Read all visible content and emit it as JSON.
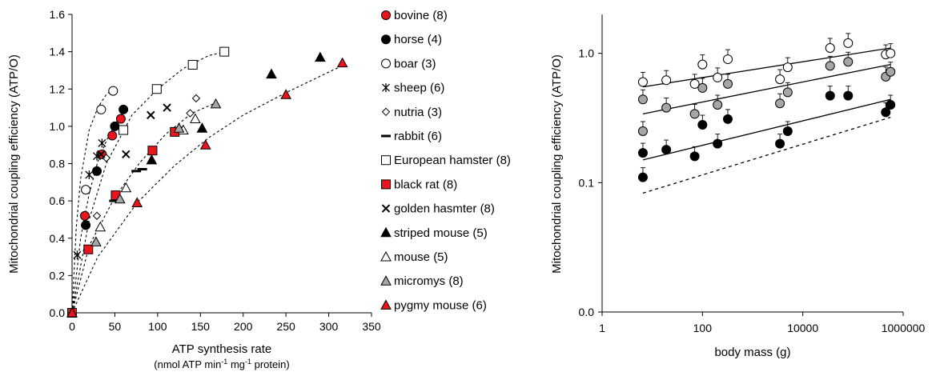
{
  "chart_data": [
    {
      "type": "scatter",
      "xlabel": "ATP synthesis rate",
      "xlabel_line2_parts": [
        "(nmol ATP min",
        "-1",
        " mg",
        "-1",
        " protein)"
      ],
      "ylabel": "Mitochondrial coupling efficiency (ATP/O)",
      "xlim": [
        0,
        350
      ],
      "ylim": [
        0,
        1.6
      ],
      "x_ticks": [
        "0",
        "50",
        "100",
        "150",
        "200",
        "250",
        "300",
        "350"
      ],
      "y_ticks": [
        "0.0",
        "0.2",
        "0.4",
        "0.6",
        "0.8",
        "1.0",
        "1.2",
        "1.4",
        "1.6"
      ],
      "legend_position": "right",
      "series": [
        {
          "name": "bovine (8)",
          "marker": "circle",
          "color": "#e8161c",
          "points": [
            [
              0,
              0
            ],
            [
              15,
              0.52
            ],
            [
              35,
              0.85
            ],
            [
              47,
              0.95
            ],
            [
              57,
              1.04
            ]
          ]
        },
        {
          "name": "horse (4)",
          "marker": "circle",
          "color": "#000000",
          "points": [
            [
              0,
              0
            ],
            [
              16,
              0.47
            ],
            [
              29,
              0.76
            ],
            [
              50,
              1.0
            ],
            [
              60,
              1.09
            ]
          ]
        },
        {
          "name": "boar (3)",
          "marker": "circle",
          "color": "#ffffff",
          "points": [
            [
              0,
              0
            ],
            [
              16,
              0.66
            ],
            [
              34,
              1.09
            ],
            [
              48,
              1.19
            ]
          ]
        },
        {
          "name": "sheep (6)",
          "marker": "asterisk",
          "color": "#000000",
          "points": [
            [
              6,
              0.31
            ],
            [
              20,
              0.74
            ],
            [
              29,
              0.84
            ],
            [
              35,
              0.91
            ]
          ]
        },
        {
          "name": "nutria (3)",
          "marker": "diamond",
          "color": "#ffffff",
          "points": [
            [
              29,
              0.52
            ],
            [
              40,
              0.83
            ],
            [
              129,
              0.98
            ],
            [
              138,
              1.07
            ],
            [
              145,
              1.15
            ]
          ]
        },
        {
          "name": "rabbit (6)",
          "marker": "dash",
          "color": "#000000",
          "points": [
            [
              49,
              0.6
            ],
            [
              75,
              0.76
            ],
            [
              82,
              0.77
            ]
          ]
        },
        {
          "name": "European hamster (8)",
          "marker": "square",
          "color": "#ffffff",
          "points": [
            [
              0,
              0
            ],
            [
              60,
              0.98
            ],
            [
              99,
              1.2
            ],
            [
              141,
              1.33
            ],
            [
              178,
              1.4
            ]
          ]
        },
        {
          "name": "black rat (8)",
          "marker": "square",
          "color": "#e8161c",
          "points": [
            [
              0,
              0
            ],
            [
              19,
              0.34
            ],
            [
              51,
              0.63
            ],
            [
              94,
              0.87
            ],
            [
              120,
              0.97
            ]
          ]
        },
        {
          "name": "golden hasmter (8)",
          "marker": "x",
          "color": "#000000",
          "points": [
            [
              34,
              0.85
            ],
            [
              63,
              0.85
            ],
            [
              92,
              1.06
            ],
            [
              111,
              1.1
            ]
          ]
        },
        {
          "name": "striped mouse (5)",
          "marker": "triangle",
          "color": "#000000",
          "points": [
            [
              0,
              0
            ],
            [
              93,
              0.82
            ],
            [
              152,
              0.99
            ],
            [
              233,
              1.28
            ],
            [
              290,
              1.37
            ]
          ]
        },
        {
          "name": "mouse (5)",
          "marker": "triangle",
          "color": "#ffffff",
          "points": [
            [
              0,
              0
            ],
            [
              33,
              0.46
            ],
            [
              63,
              0.67
            ],
            [
              130,
              0.98
            ],
            [
              144,
              1.04
            ]
          ]
        },
        {
          "name": "micromys (8)",
          "marker": "triangle",
          "color": "#a6a6a6",
          "points": [
            [
              0,
              0
            ],
            [
              28,
              0.38
            ],
            [
              56,
              0.61
            ],
            [
              125,
              0.99
            ],
            [
              168,
              1.12
            ]
          ]
        },
        {
          "name": "pygmy mouse (6)",
          "marker": "triangle",
          "color": "#e8161c",
          "points": [
            [
              0,
              0
            ],
            [
              76,
              0.59
            ],
            [
              156,
              0.9
            ],
            [
              250,
              1.17
            ],
            [
              316,
              1.34
            ]
          ]
        }
      ],
      "fit_curves": [
        {
          "style": "dotted",
          "points": [
            [
              0,
              0
            ],
            [
              5,
              0.46
            ],
            [
              10,
              0.72
            ],
            [
              20,
              0.98
            ],
            [
              30,
              1.1
            ],
            [
              40,
              1.17
            ],
            [
              50,
              1.21
            ]
          ]
        },
        {
          "style": "dotted",
          "points": [
            [
              0,
              0
            ],
            [
              10,
              0.4
            ],
            [
              20,
              0.64
            ],
            [
              30,
              0.81
            ],
            [
              40,
              0.92
            ],
            [
              50,
              1.01
            ],
            [
              60,
              1.08
            ]
          ]
        },
        {
          "style": "dotted",
          "points": [
            [
              0,
              0
            ],
            [
              20,
              0.5
            ],
            [
              40,
              0.8
            ],
            [
              70,
              1.06
            ],
            [
              100,
              1.2
            ],
            [
              130,
              1.31
            ],
            [
              160,
              1.38
            ],
            [
              180,
              1.4
            ]
          ]
        },
        {
          "style": "dotted",
          "points": [
            [
              0,
              0
            ],
            [
              20,
              0.36
            ],
            [
              50,
              0.62
            ],
            [
              80,
              0.81
            ],
            [
              110,
              0.96
            ],
            [
              140,
              1.07
            ],
            [
              165,
              1.12
            ]
          ]
        },
        {
          "style": "dotted",
          "points": [
            [
              0,
              0
            ],
            [
              30,
              0.3
            ],
            [
              76,
              0.59
            ],
            [
              120,
              0.79
            ],
            [
              160,
              0.94
            ],
            [
              200,
              1.06
            ],
            [
              250,
              1.18
            ],
            [
              318,
              1.33
            ]
          ]
        }
      ]
    },
    {
      "type": "scatter",
      "xlabel": "body mass (g)",
      "ylabel": "Mitochondrial coupling efficiency (ATP/O)",
      "x_scale": "log",
      "y_scale": "log",
      "xlim": [
        1,
        1000000
      ],
      "ylim": [
        0.01,
        2
      ],
      "x_ticks": [
        {
          "value": 1,
          "label": "1"
        },
        {
          "value": 100,
          "label": "100"
        },
        {
          "value": 10000,
          "label": "10000"
        },
        {
          "value": 1000000,
          "label": "1000000"
        }
      ],
      "y_ticks": [
        {
          "value": 0.01,
          "label": "0.0"
        },
        {
          "value": 0.1,
          "label": "0.1"
        },
        {
          "value": 1,
          "label": "1.0"
        }
      ],
      "series": [
        {
          "name": "",
          "marker": "circle",
          "color": "#ffffff",
          "points": [
            [
              6.5,
              0.6
            ],
            [
              19,
              0.62
            ],
            [
              70,
              0.58
            ],
            [
              100,
              0.82
            ],
            [
              200,
              0.65
            ],
            [
              320,
              0.9
            ],
            [
              3500,
              0.63
            ],
            [
              5000,
              0.78
            ],
            [
              35000,
              1.1
            ],
            [
              80000,
              1.2
            ],
            [
              450000,
              0.98
            ],
            [
              560000,
              1.0
            ]
          ]
        },
        {
          "name": "",
          "marker": "circle",
          "color": "#a6a6a6",
          "points": [
            [
              6.5,
              0.25
            ],
            [
              6.5,
              0.44
            ],
            [
              19,
              0.38
            ],
            [
              70,
              0.34
            ],
            [
              100,
              0.54
            ],
            [
              200,
              0.4
            ],
            [
              320,
              0.58
            ],
            [
              3500,
              0.41
            ],
            [
              5000,
              0.5
            ],
            [
              35000,
              0.8
            ],
            [
              80000,
              0.86
            ],
            [
              450000,
              0.66
            ],
            [
              560000,
              0.72
            ]
          ]
        },
        {
          "name": "",
          "marker": "circle",
          "color": "#000000",
          "points": [
            [
              6.5,
              0.11
            ],
            [
              6.5,
              0.17
            ],
            [
              19,
              0.18
            ],
            [
              70,
              0.16
            ],
            [
              100,
              0.28
            ],
            [
              200,
              0.2
            ],
            [
              320,
              0.31
            ],
            [
              3500,
              0.2
            ],
            [
              5000,
              0.25
            ],
            [
              35000,
              0.47
            ],
            [
              80000,
              0.47
            ],
            [
              450000,
              0.35
            ],
            [
              560000,
              0.4
            ]
          ]
        }
      ],
      "fit_lines": [
        {
          "style": "solid",
          "points": [
            [
              6.5,
              0.55
            ],
            [
              560000,
              1.1
            ]
          ]
        },
        {
          "style": "solid",
          "points": [
            [
              6.5,
              0.34
            ],
            [
              560000,
              0.82
            ]
          ]
        },
        {
          "style": "solid",
          "points": [
            [
              6.5,
              0.15
            ],
            [
              560000,
              0.44
            ]
          ]
        },
        {
          "style": "dashed",
          "points": [
            [
              6.5,
              0.083
            ],
            [
              560000,
              0.32
            ]
          ]
        }
      ]
    }
  ]
}
